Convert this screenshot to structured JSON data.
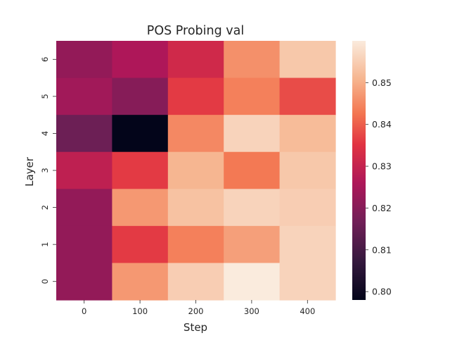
{
  "chart_data": {
    "type": "heatmap",
    "title": "POS Probing val",
    "xlabel": "Step",
    "ylabel": "Layer",
    "x": [
      "0",
      "100",
      "200",
      "300",
      "400"
    ],
    "y": [
      "6",
      "5",
      "4",
      "3",
      "2",
      "1",
      "0"
    ],
    "values": [
      [
        0.822,
        0.826,
        0.832,
        0.846,
        0.854
      ],
      [
        0.824,
        0.82,
        0.836,
        0.844,
        0.838
      ],
      [
        0.816,
        0.798,
        0.845,
        0.856,
        0.852
      ],
      [
        0.829,
        0.836,
        0.851,
        0.843,
        0.854
      ],
      [
        0.822,
        0.847,
        0.853,
        0.856,
        0.855
      ],
      [
        0.822,
        0.836,
        0.844,
        0.848,
        0.856
      ],
      [
        0.822,
        0.847,
        0.855,
        0.86,
        0.856
      ]
    ],
    "colorbar": {
      "min": 0.798,
      "max": 0.86,
      "ticks": [
        "0.80",
        "0.81",
        "0.82",
        "0.83",
        "0.84",
        "0.85"
      ],
      "colormap": "rocket"
    }
  }
}
